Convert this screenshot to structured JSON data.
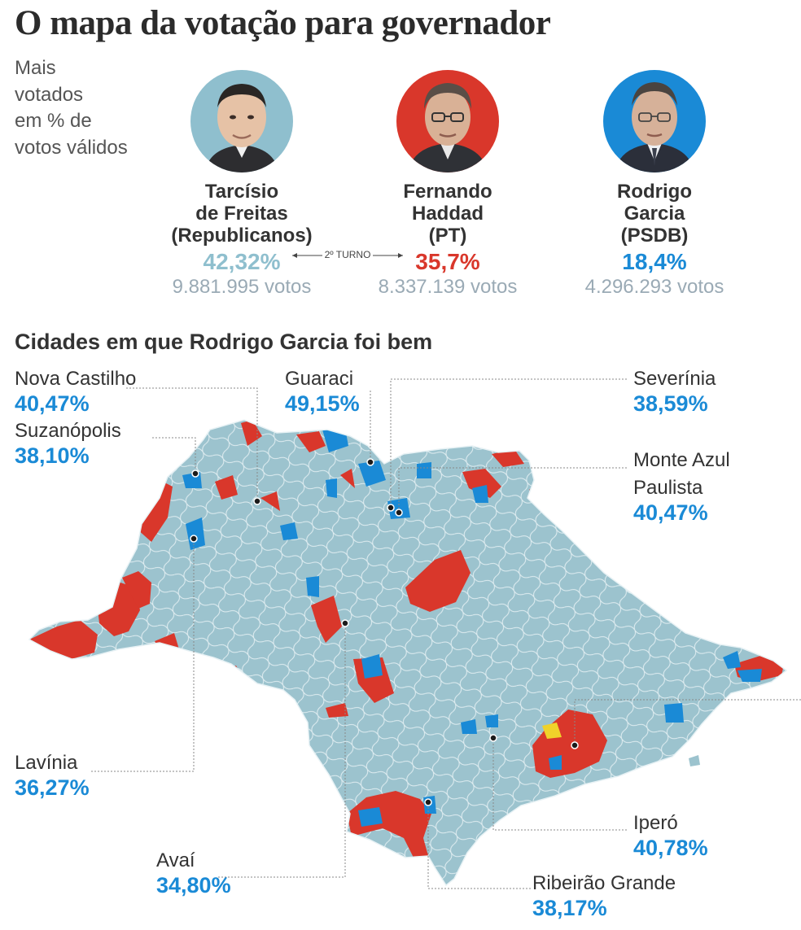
{
  "header": {
    "title": "O mapa da votação para governador",
    "subtitle_lines": [
      "Mais",
      "votados",
      "em % de",
      "votos válidos"
    ]
  },
  "candidates": [
    {
      "name_lines": [
        "Tarcísio",
        "de Freitas",
        "(Republicanos)"
      ],
      "pct": "42,32%",
      "votes": "9.881.995 votos",
      "color": "#8fbfce"
    },
    {
      "name_lines": [
        "Fernando",
        "Haddad",
        "(PT)"
      ],
      "pct": "35,7%",
      "votes": "8.337.139 votos",
      "color": "#d9372b"
    },
    {
      "name_lines": [
        "Rodrigo",
        "Garcia",
        "(PSDB)"
      ],
      "pct": "18,4%",
      "votes": "4.296.293 votos",
      "color": "#1a8ad6"
    }
  ],
  "second_round_label": "2º TURNO",
  "map": {
    "title": "Cidades em que Rodrigo Garcia foi bem",
    "colors": {
      "tarcisio": "#9cc3ce",
      "haddad": "#d9372b",
      "garcia": "#1a8ad6",
      "other": "#f0d22a",
      "borders": "#e8f2f5"
    },
    "cities": [
      {
        "name": "Nova Castilho",
        "value": "40,47%"
      },
      {
        "name": "Guaraci",
        "value": "49,15%"
      },
      {
        "name": "Severínia",
        "value": "38,59%"
      },
      {
        "name": "Suzanópolis",
        "value": "38,10%"
      },
      {
        "name": "Monte Azul",
        "name2": "Paulista",
        "value": "40,47%"
      },
      {
        "name": "Lavínia",
        "value": "36,27%"
      },
      {
        "name": "Iperó",
        "value": "40,78%"
      },
      {
        "name": "Avaí",
        "value": "34,80%"
      },
      {
        "name": "Ribeirão Grande",
        "value": "38,17%"
      }
    ]
  }
}
